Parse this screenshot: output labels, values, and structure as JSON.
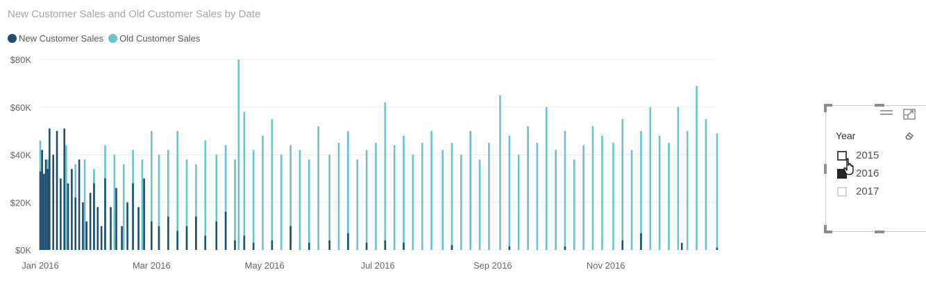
{
  "chart_data": {
    "type": "bar",
    "stacked": false,
    "title": "New Customer Sales and Old Customer Sales by Date",
    "x_ticks": [
      "Jan 2016",
      "Mar 2016",
      "May 2016",
      "Jul 2016",
      "Sep 2016",
      "Nov 2016"
    ],
    "y_ticks": [
      "$0K",
      "$20K",
      "$40K",
      "$60K",
      "$80K"
    ],
    "ylim": [
      0,
      80000
    ],
    "x_range": [
      "2016-01-01",
      "2016-12-31"
    ],
    "grid": true,
    "legend_position": "top-left",
    "colors": {
      "new": "#1f4e6e",
      "old": "#6cc2cc",
      "grid": "#ececec"
    },
    "series": [
      {
        "name": "New Customer Sales",
        "x": [
          "2016-01-01",
          "2016-01-02",
          "2016-01-03",
          "2016-01-04",
          "2016-01-05",
          "2016-01-06",
          "2016-01-08",
          "2016-01-10",
          "2016-01-12",
          "2016-01-14",
          "2016-01-16",
          "2016-01-18",
          "2016-01-20",
          "2016-01-22",
          "2016-01-24",
          "2016-01-26",
          "2016-01-28",
          "2016-01-30",
          "2016-02-01",
          "2016-02-03",
          "2016-02-05",
          "2016-02-08",
          "2016-02-11",
          "2016-02-14",
          "2016-02-17",
          "2016-02-20",
          "2016-02-23",
          "2016-02-26",
          "2016-03-01",
          "2016-03-05",
          "2016-03-10",
          "2016-03-15",
          "2016-03-20",
          "2016-03-25",
          "2016-03-30",
          "2016-04-05",
          "2016-04-10",
          "2016-04-15",
          "2016-04-20",
          "2016-04-25",
          "2016-05-05",
          "2016-05-15",
          "2016-05-25",
          "2016-06-05",
          "2016-06-15",
          "2016-06-25",
          "2016-07-05",
          "2016-07-15",
          "2016-08-10",
          "2016-09-10",
          "2016-10-10",
          "2016-11-10",
          "2016-11-20",
          "2016-12-12",
          "2016-12-31"
        ],
        "values": [
          33000,
          42000,
          32000,
          38000,
          34000,
          51000,
          40000,
          50000,
          30000,
          51000,
          28000,
          34000,
          22000,
          38000,
          20000,
          12000,
          24000,
          28000,
          18000,
          10000,
          30000,
          18000,
          26000,
          10000,
          20000,
          28000,
          18000,
          30000,
          12000,
          10000,
          14000,
          8000,
          10000,
          14000,
          6000,
          12000,
          16000,
          4000,
          6000,
          3000,
          4000,
          10000,
          3000,
          4000,
          7000,
          3000,
          4000,
          3000,
          2000,
          1500,
          1500,
          4000,
          7000,
          3000,
          1000
        ]
      },
      {
        "name": "Old Customer Sales",
        "x": [
          "2016-01-01",
          "2016-01-05",
          "2016-01-10",
          "2016-01-15",
          "2016-01-20",
          "2016-01-25",
          "2016-01-30",
          "2016-02-05",
          "2016-02-10",
          "2016-02-15",
          "2016-02-20",
          "2016-02-25",
          "2016-03-01",
          "2016-03-05",
          "2016-03-10",
          "2016-03-15",
          "2016-03-20",
          "2016-03-25",
          "2016-03-30",
          "2016-04-05",
          "2016-04-10",
          "2016-04-15",
          "2016-04-17",
          "2016-04-20",
          "2016-04-25",
          "2016-04-30",
          "2016-05-05",
          "2016-05-10",
          "2016-05-15",
          "2016-05-20",
          "2016-05-25",
          "2016-05-30",
          "2016-06-05",
          "2016-06-10",
          "2016-06-15",
          "2016-06-20",
          "2016-06-25",
          "2016-06-30",
          "2016-07-05",
          "2016-07-10",
          "2016-07-15",
          "2016-07-20",
          "2016-07-25",
          "2016-07-30",
          "2016-08-05",
          "2016-08-10",
          "2016-08-15",
          "2016-08-20",
          "2016-08-25",
          "2016-08-30",
          "2016-09-05",
          "2016-09-10",
          "2016-09-15",
          "2016-09-20",
          "2016-09-25",
          "2016-09-30",
          "2016-10-05",
          "2016-10-10",
          "2016-10-15",
          "2016-10-20",
          "2016-10-25",
          "2016-10-30",
          "2016-11-05",
          "2016-11-10",
          "2016-11-15",
          "2016-11-20",
          "2016-11-25",
          "2016-11-30",
          "2016-12-05",
          "2016-12-10",
          "2016-12-15",
          "2016-12-20",
          "2016-12-25",
          "2016-12-31"
        ],
        "values": [
          46000,
          38000,
          40000,
          44000,
          36000,
          38000,
          34000,
          44000,
          40000,
          36000,
          42000,
          38000,
          50000,
          40000,
          42000,
          50000,
          38000,
          36000,
          46000,
          40000,
          44000,
          38000,
          80000,
          58000,
          42000,
          48000,
          55000,
          40000,
          44000,
          42000,
          38000,
          52000,
          40000,
          45000,
          50000,
          38000,
          42000,
          45000,
          62000,
          44000,
          48000,
          40000,
          45000,
          50000,
          42000,
          45000,
          40000,
          50000,
          38000,
          45000,
          65000,
          48000,
          40000,
          52000,
          45000,
          60000,
          42000,
          50000,
          38000,
          44000,
          52000,
          48000,
          45000,
          55000,
          42000,
          50000,
          60000,
          48000,
          45000,
          60000,
          50000,
          69000,
          55000,
          49000
        ]
      }
    ]
  },
  "slicer": {
    "header": "Year",
    "items": [
      {
        "label": "2015",
        "state": "hover"
      },
      {
        "label": "2016",
        "state": "checked"
      },
      {
        "label": "2017",
        "state": "unchecked"
      }
    ]
  }
}
